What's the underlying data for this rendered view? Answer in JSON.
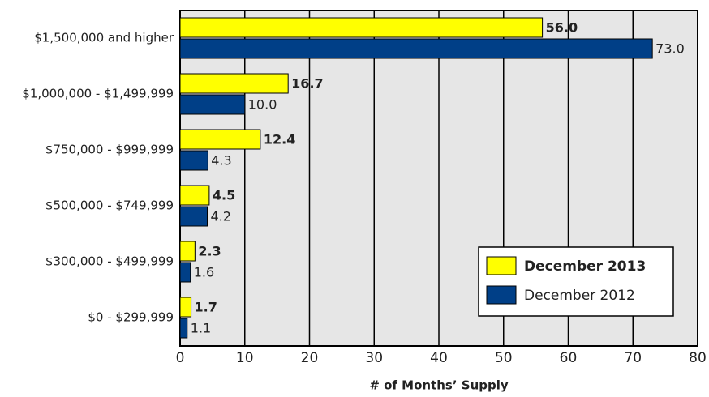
{
  "chart_data": {
    "type": "barh",
    "xlabel": "# of Months’ Supply",
    "categories": [
      "$1,500,000 and higher",
      "$1,000,000 - $1,499,999",
      "$750,000 - $999,999",
      "$500,000 - $749,999",
      "$300,000 - $499,999",
      "$0 - $299,999"
    ],
    "series": [
      {
        "name": "December 2013",
        "color": "#ffff00",
        "values": [
          56,
          16.7,
          12.4,
          4.5,
          2.3,
          1.7
        ],
        "value_labels": [
          "56.0",
          "16.7",
          "12.4",
          "4.5",
          "2.3",
          "1.7"
        ]
      },
      {
        "name": "December 2012",
        "color": "#003f87",
        "values": [
          73,
          10,
          4.3,
          4.2,
          1.6,
          1.1
        ],
        "value_labels": [
          "73.0",
          "10.0",
          "4.3",
          "4.2",
          "1.6",
          "1.1"
        ]
      }
    ],
    "xlim": [
      0,
      80
    ],
    "xticks": [
      0,
      10,
      20,
      30,
      40,
      50,
      60,
      70,
      80
    ],
    "grid": true,
    "legend": "lower right"
  }
}
